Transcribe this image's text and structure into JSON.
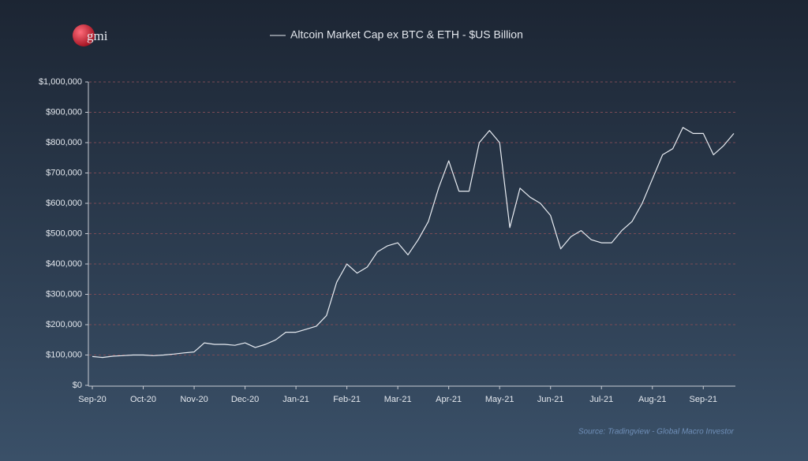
{
  "logo": "gmi",
  "chart_data": {
    "type": "line",
    "title": "Altcoin Market Cap ex BTC & ETH - $US Billion",
    "source": "Source: Tradingview - Global Macro Investor",
    "categories": [
      "Sep-20",
      null,
      null,
      null,
      null,
      "Oct-20",
      null,
      null,
      null,
      null,
      "Nov-20",
      null,
      null,
      null,
      null,
      "Dec-20",
      null,
      null,
      null,
      null,
      "Jan-21",
      null,
      null,
      null,
      null,
      "Feb-21",
      null,
      null,
      null,
      null,
      "Mar-21",
      null,
      null,
      null,
      null,
      "Apr-21",
      null,
      null,
      null,
      null,
      "May-21",
      null,
      null,
      null,
      null,
      "Jun-21",
      null,
      null,
      null,
      null,
      "Jul-21",
      null,
      null,
      null,
      null,
      "Aug-21",
      null,
      null,
      null,
      null,
      "Sep-21",
      null,
      null,
      null
    ],
    "series": [
      {
        "name": "Altcoin Market Cap ex BTC & ETH - $US Billion",
        "color": "#e8ecf2",
        "values": [
          95000,
          92000,
          96000,
          98000,
          100000,
          100000,
          98000,
          100000,
          103000,
          107000,
          110000,
          140000,
          135000,
          135000,
          132000,
          140000,
          125000,
          135000,
          150000,
          175000,
          175000,
          185000,
          195000,
          230000,
          340000,
          400000,
          370000,
          390000,
          440000,
          460000,
          470000,
          430000,
          480000,
          540000,
          650000,
          740000,
          640000,
          640000,
          800000,
          840000,
          800000,
          520000,
          650000,
          620000,
          600000,
          560000,
          450000,
          490000,
          510000,
          480000,
          470000,
          470000,
          510000,
          540000,
          600000,
          680000,
          760000,
          780000,
          850000,
          830000,
          830000,
          760000,
          790000,
          830000
        ]
      }
    ],
    "ylim": [
      0,
      1000000
    ],
    "yticks": [
      {
        "value": 0,
        "label": "$0"
      },
      {
        "value": 100000,
        "label": "$100,000"
      },
      {
        "value": 200000,
        "label": "$200,000"
      },
      {
        "value": 300000,
        "label": "$300,000"
      },
      {
        "value": 400000,
        "label": "$400,000"
      },
      {
        "value": 500000,
        "label": "$500,000"
      },
      {
        "value": 600000,
        "label": "$600,000"
      },
      {
        "value": 700000,
        "label": "$700,000"
      },
      {
        "value": 800000,
        "label": "$800,000"
      },
      {
        "value": 900000,
        "label": "$900,000"
      },
      {
        "value": 1000000,
        "label": "$1,000,000"
      }
    ],
    "grid": true,
    "grid_color": "#7a4a55"
  }
}
